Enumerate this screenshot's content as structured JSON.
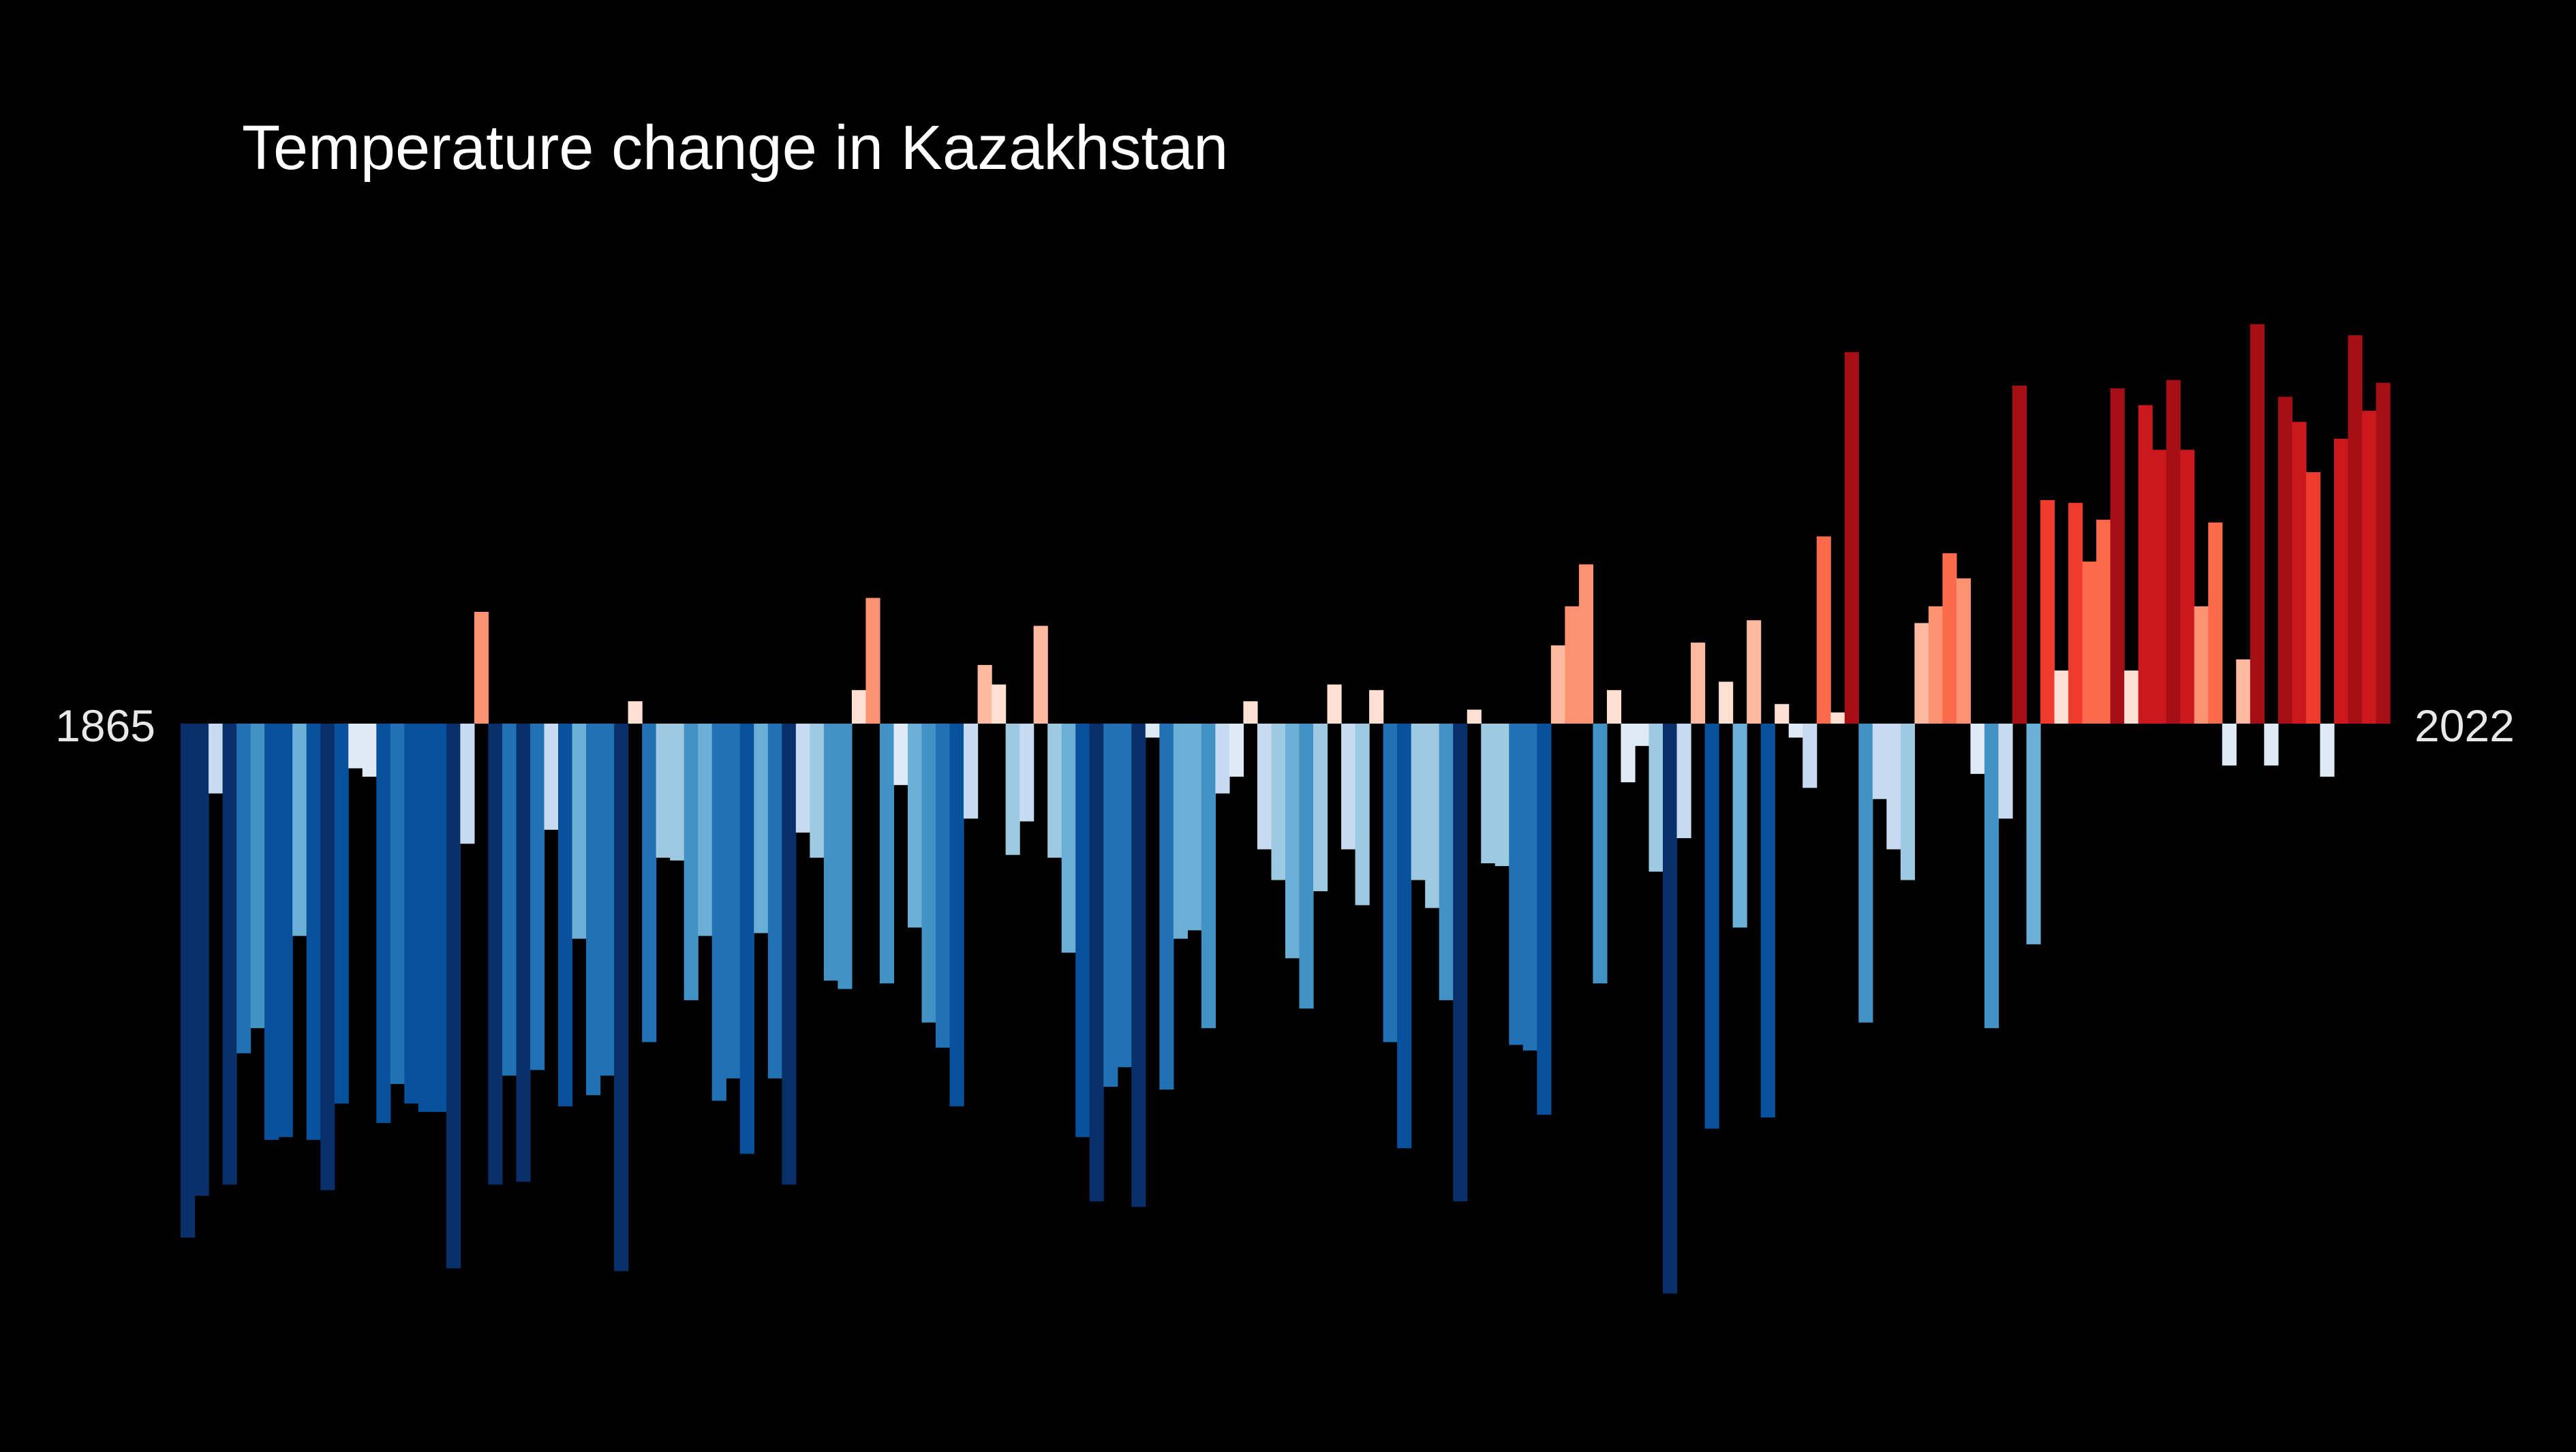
{
  "chart_data": {
    "type": "bar",
    "title": "Temperature change in Kazakhstan",
    "xlabel": "",
    "ylabel": "",
    "start_label": "1865",
    "end_label": "2022",
    "x_range": [
      1865,
      2022
    ],
    "ylim": [
      -2.03,
      1.43
    ],
    "grid": false,
    "legend": "none",
    "color_scale": "diverging blue-white-red (blue = cooler, red = warmer)",
    "years": [
      1865,
      1866,
      1867,
      1868,
      1869,
      1870,
      1871,
      1872,
      1873,
      1874,
      1875,
      1876,
      1877,
      1878,
      1879,
      1880,
      1881,
      1882,
      1883,
      1884,
      1885,
      1886,
      1887,
      1888,
      1889,
      1890,
      1891,
      1892,
      1893,
      1894,
      1895,
      1896,
      1897,
      1898,
      1899,
      1900,
      1901,
      1902,
      1903,
      1904,
      1905,
      1906,
      1907,
      1908,
      1909,
      1910,
      1911,
      1912,
      1913,
      1914,
      1915,
      1916,
      1917,
      1918,
      1919,
      1920,
      1921,
      1922,
      1923,
      1924,
      1925,
      1926,
      1927,
      1928,
      1929,
      1930,
      1931,
      1932,
      1933,
      1934,
      1935,
      1936,
      1937,
      1938,
      1939,
      1940,
      1941,
      1942,
      1943,
      1944,
      1945,
      1946,
      1947,
      1948,
      1949,
      1950,
      1951,
      1952,
      1953,
      1954,
      1955,
      1956,
      1957,
      1958,
      1959,
      1960,
      1961,
      1962,
      1963,
      1964,
      1965,
      1966,
      1967,
      1968,
      1969,
      1970,
      1971,
      1972,
      1973,
      1974,
      1975,
      1976,
      1977,
      1978,
      1979,
      1980,
      1981,
      1982,
      1983,
      1984,
      1985,
      1986,
      1987,
      1988,
      1989,
      1990,
      1991,
      1992,
      1993,
      1994,
      1995,
      1996,
      1997,
      1998,
      1999,
      2000,
      2001,
      2002,
      2003,
      2004,
      2005,
      2006,
      2007,
      2008,
      2009,
      2010,
      2011,
      2012,
      2013,
      2014,
      2015,
      2016,
      2017,
      2018,
      2019,
      2020,
      2021,
      2022
    ],
    "values": [
      -1.84,
      -1.69,
      -0.25,
      -1.65,
      -1.18,
      -1.09,
      -1.49,
      -1.48,
      -0.76,
      -1.49,
      -1.67,
      -1.36,
      -0.16,
      -0.19,
      -1.43,
      -1.29,
      -1.36,
      -1.39,
      -1.39,
      -1.95,
      -0.43,
      0.4,
      -1.65,
      -1.26,
      -1.64,
      -1.24,
      -0.38,
      -1.37,
      -0.77,
      -1.33,
      -1.26,
      -1.96,
      0.08,
      -1.14,
      -0.48,
      -0.49,
      -0.99,
      -0.76,
      -1.35,
      -1.27,
      -1.54,
      -0.75,
      -1.27,
      -1.65,
      -0.39,
      -0.48,
      -0.92,
      -0.95,
      0.12,
      0.45,
      -0.93,
      -0.22,
      -0.73,
      -1.07,
      -1.16,
      -1.37,
      -0.34,
      0.21,
      0.14,
      -0.47,
      -0.35,
      0.35,
      -0.48,
      -0.82,
      -1.48,
      -1.71,
      -1.3,
      -1.23,
      -1.73,
      -0.05,
      -1.31,
      -0.77,
      -0.74,
      -1.09,
      -0.25,
      -0.19,
      0.08,
      -0.45,
      -0.56,
      -0.84,
      -1.02,
      -0.6,
      0.14,
      -0.45,
      -0.65,
      0.12,
      -1.14,
      -1.52,
      -0.56,
      -0.66,
      -0.99,
      -1.71,
      0.05,
      -0.5,
      -0.51,
      -1.15,
      -1.17,
      -1.4,
      0.28,
      0.42,
      0.57,
      -0.93,
      0.12,
      -0.21,
      -0.08,
      -0.53,
      -2.04,
      -0.41,
      0.29,
      -1.45,
      0.15,
      -0.73,
      0.37,
      -1.41,
      0.07,
      -0.05,
      -0.23,
      0.67,
      0.04,
      1.33,
      -1.07,
      -0.27,
      -0.45,
      -0.56,
      0.36,
      0.42,
      0.61,
      0.52,
      -0.18,
      -1.09,
      -0.34,
      1.21,
      -0.79,
      0.8,
      0.19,
      0.79,
      0.58,
      0.73,
      1.2,
      0.19,
      1.14,
      0.98,
      1.23,
      0.98,
      0.42,
      0.72,
      -0.15,
      0.23,
      1.43,
      -0.15,
      1.17,
      1.08,
      0.9,
      -0.19,
      1.02,
      1.39,
      1.12,
      1.22
    ]
  }
}
